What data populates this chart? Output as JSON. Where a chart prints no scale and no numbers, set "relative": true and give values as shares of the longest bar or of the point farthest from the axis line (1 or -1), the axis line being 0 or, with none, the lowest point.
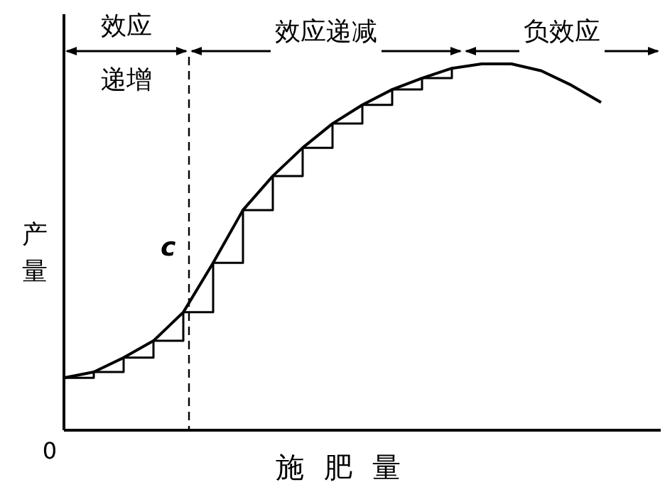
{
  "chart_data": {
    "type": "line",
    "relative": true,
    "xlabel": "施肥量",
    "ylabel": "产量",
    "categories": [
      null,
      null,
      null,
      null,
      null,
      null,
      null,
      null,
      null,
      null,
      null,
      null,
      null,
      null,
      null,
      null,
      null,
      null,
      null
    ],
    "series": [
      {
        "type": "line",
        "color": "#000000",
        "values": [
          0.143,
          0.159,
          0.198,
          0.244,
          0.322,
          0.457,
          0.601,
          0.694,
          0.771,
          0.837,
          0.888,
          0.93,
          0.961,
          0.988,
          1,
          1,
          0.981,
          0.942,
          0.895
        ]
      },
      {
        "type": "step",
        "color": "#000000",
        "values": [
          0.143,
          0.159,
          0.198,
          0.244,
          0.322,
          0.457,
          0.601,
          0.694,
          0.771,
          0.837,
          0.888,
          0.93,
          0.961,
          0.988,
          null,
          null,
          null,
          null,
          null
        ]
      }
    ],
    "annotations": [
      "效应递增",
      "效应递减",
      "负效应",
      "c",
      "0"
    ]
  }
}
